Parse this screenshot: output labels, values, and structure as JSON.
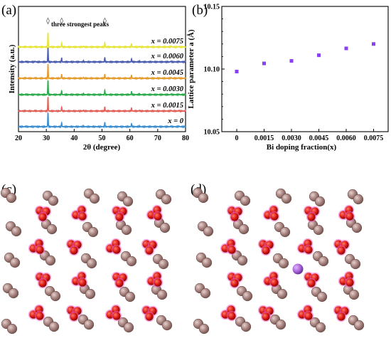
{
  "panels": {
    "a": "(a)",
    "b": "(b)",
    "c": "(c)",
    "d": "(d)"
  },
  "chart_data": [
    {
      "type": "line",
      "panel": "(a)",
      "xlabel": "2θ (degree)",
      "ylabel": "Intensity (a.u.)",
      "xlim": [
        20,
        80
      ],
      "xticks": [
        "20",
        "30",
        "40",
        "50",
        "60",
        "70",
        "80"
      ],
      "annotation": "three strongest peaks",
      "marker_symbol": "◊",
      "peak_markers": [
        30.6,
        35.5,
        51.0
      ],
      "peaks": [
        {
          "pos": 30.6,
          "h": 1.0
        },
        {
          "pos": 35.5,
          "h": 0.28
        },
        {
          "pos": 51.0,
          "h": 0.3
        },
        {
          "pos": 60.6,
          "h": 0.22
        },
        {
          "pos": 43.3,
          "h": 0.06
        },
        {
          "pos": 26.0,
          "h": 0.04
        },
        {
          "pos": 22.6,
          "h": 0.03
        },
        {
          "pos": 63.4,
          "h": 0.05
        },
        {
          "pos": 74.8,
          "h": 0.05
        },
        {
          "pos": 77.6,
          "h": 0.04
        }
      ],
      "series": [
        {
          "name": "x = 0",
          "color": "#3d8fd1"
        },
        {
          "name": "x = 0.0015",
          "color": "#e0625a"
        },
        {
          "name": "x = 0.0030",
          "color": "#2eab4e"
        },
        {
          "name": "x = 0.0045",
          "color": "#e59b2d"
        },
        {
          "name": "x = 0.0060",
          "color": "#4a5db0"
        },
        {
          "name": "x = 0.0075",
          "color": "#e8e43a"
        }
      ]
    },
    {
      "type": "scatter",
      "panel": "(b)",
      "xlabel": "Bi doping fraction(x)",
      "ylabel": "Lattice parameter a (Å)",
      "categories": [
        "0",
        "0.0015",
        "0.0030",
        "0.0045",
        "0.0060",
        "0.0075"
      ],
      "values": [
        10.098,
        10.1045,
        10.1065,
        10.111,
        10.1165,
        10.12
      ],
      "ylim": [
        10.05,
        10.15
      ],
      "yticks": [
        "10.05",
        "10.10",
        "10.15"
      ],
      "marker_color": "#8a3ff0"
    }
  ],
  "structures": {
    "colors": {
      "large_atom": "#a88480",
      "large_atom_rim": "#6e4f4b",
      "oxygen": "#d81410",
      "oxygen_halo": "#f06ad2",
      "dopant": "#a35fd6"
    }
  }
}
